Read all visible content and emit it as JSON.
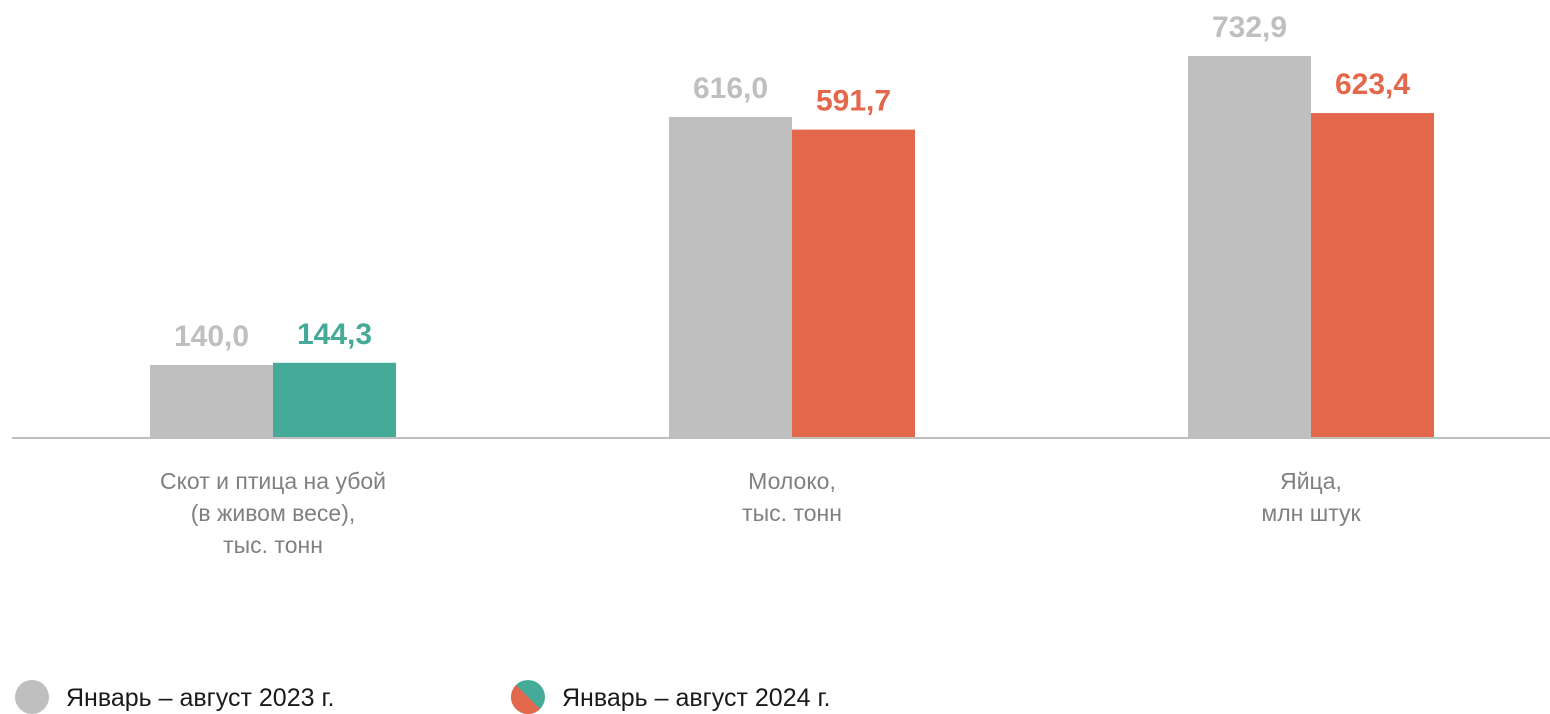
{
  "chart_data": {
    "type": "bar",
    "categories": [
      [
        "Скот и птица на убой",
        "(в живом весе),",
        "тыс. тонн"
      ],
      [
        "Молоко,",
        "тыс. тонн"
      ],
      [
        "Яйца,",
        "млн штук"
      ]
    ],
    "series": [
      {
        "name": "Январь – август 2023 г.",
        "values": [
          140.0,
          616.0,
          732.9
        ],
        "labels": [
          "140,0",
          "616,0",
          "732,9"
        ],
        "colors": [
          "#bfbfbf",
          "#bfbfbf",
          "#bfbfbf"
        ],
        "label_colors": [
          "#bfbfbf",
          "#bfbfbf",
          "#bfbfbf"
        ]
      },
      {
        "name": "Январь – август 2024 г.",
        "values": [
          144.3,
          591.7,
          623.4
        ],
        "labels": [
          "144,3",
          "591,7",
          "623,4"
        ],
        "colors": [
          "#46aa98",
          "#e3674a",
          "#e3674a"
        ],
        "label_colors": [
          "#46aa98",
          "#e3674a",
          "#e3674a"
        ]
      }
    ],
    "ylim": [
      0,
      732.9
    ],
    "grid": false,
    "legend_position": "bottom-left",
    "legend": [
      {
        "label": "Январь – август 2023 г.",
        "icon": "gray-circle-icon",
        "colors": [
          "#bfbfbf"
        ]
      },
      {
        "label": "Январь – август 2024 г.",
        "icon": "split-circle-icon",
        "colors": [
          "#e3674a",
          "#46aa98"
        ]
      }
    ],
    "axis_color": "#bfbfbf"
  }
}
